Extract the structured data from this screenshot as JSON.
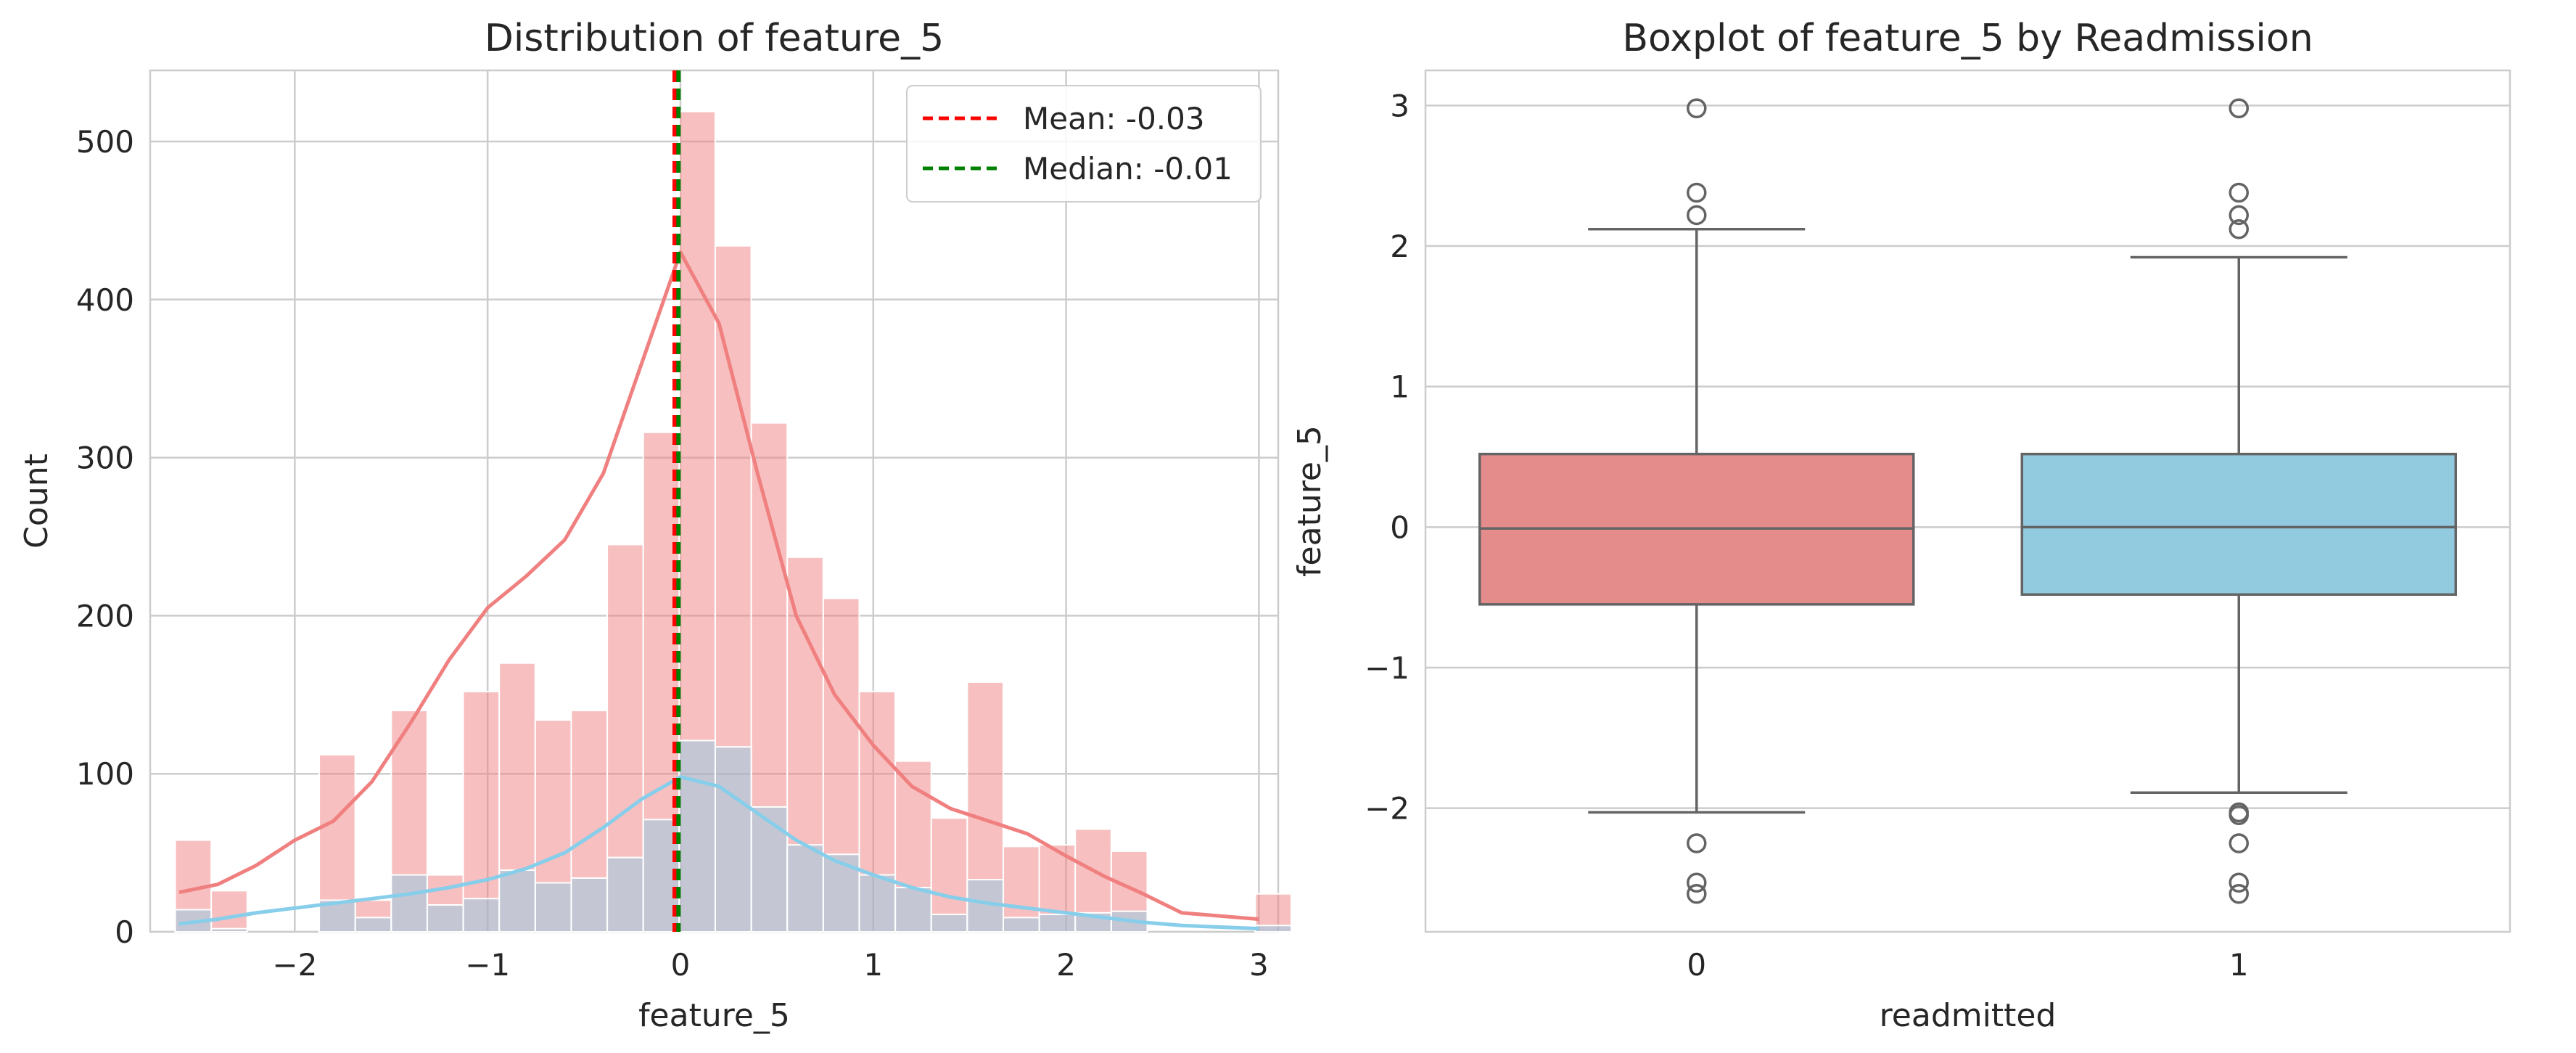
{
  "chart_data": [
    {
      "type": "histogram",
      "title": "Distribution of feature_5",
      "xlabel": "feature_5",
      "ylabel": "Count",
      "xlim": [
        -2.75,
        3.1
      ],
      "ylim": [
        0,
        545
      ],
      "xticks": [
        -2,
        -1,
        0,
        1,
        2,
        3
      ],
      "xtick_labels": [
        "−2",
        "−1",
        "0",
        "1",
        "2",
        "3"
      ],
      "yticks": [
        0,
        100,
        200,
        300,
        400,
        500
      ],
      "grid": true,
      "legend_position": "top-right",
      "bin_width": 0.1867,
      "bin_edges_start": -2.62,
      "series": [
        {
          "color": "#f08080",
          "counts": [
            58,
            26,
            0,
            0,
            112,
            20,
            140,
            36,
            152,
            170,
            134,
            140,
            245,
            316,
            519,
            434,
            322,
            237,
            211,
            152,
            108,
            72,
            158,
            54,
            55,
            65,
            51,
            0,
            0,
            0,
            24
          ],
          "kde_x": [
            -2.6,
            -2.4,
            -2.2,
            -2.0,
            -1.8,
            -1.6,
            -1.4,
            -1.2,
            -1.0,
            -0.8,
            -0.6,
            -0.4,
            -0.2,
            0.0,
            0.2,
            0.4,
            0.6,
            0.8,
            1.0,
            1.2,
            1.4,
            1.6,
            1.8,
            2.0,
            2.2,
            2.4,
            2.6,
            2.8,
            3.0
          ],
          "kde_y": [
            25,
            30,
            42,
            58,
            70,
            95,
            132,
            172,
            205,
            225,
            248,
            290,
            360,
            430,
            385,
            290,
            200,
            150,
            118,
            92,
            78,
            70,
            62,
            48,
            35,
            24,
            12,
            10,
            8
          ]
        },
        {
          "color": "#87ceeb",
          "counts": [
            14,
            2,
            0,
            0,
            20,
            9,
            36,
            17,
            21,
            39,
            31,
            34,
            47,
            71,
            121,
            117,
            79,
            55,
            49,
            36,
            28,
            11,
            33,
            9,
            11,
            12,
            13,
            0,
            0,
            0,
            4
          ],
          "kde_x": [
            -2.6,
            -2.4,
            -2.2,
            -2.0,
            -1.8,
            -1.6,
            -1.4,
            -1.2,
            -1.0,
            -0.8,
            -0.6,
            -0.4,
            -0.2,
            0.0,
            0.2,
            0.4,
            0.6,
            0.8,
            1.0,
            1.2,
            1.4,
            1.6,
            1.8,
            2.0,
            2.2,
            2.4,
            2.6,
            2.8,
            3.0
          ],
          "kde_y": [
            5,
            8,
            12,
            15,
            18,
            21,
            24,
            28,
            33,
            40,
            50,
            66,
            84,
            98,
            92,
            75,
            58,
            45,
            36,
            28,
            22,
            18,
            15,
            12,
            9,
            6,
            4,
            3,
            2
          ]
        }
      ],
      "lines": [
        {
          "name": "Mean: -0.03",
          "x": -0.03,
          "color": "#ff0000",
          "style": "dashed"
        },
        {
          "name": "Median: -0.01",
          "x": -0.01,
          "color": "#008000",
          "style": "dashed"
        }
      ]
    },
    {
      "type": "box",
      "title": "Boxplot of feature_5 by Readmission",
      "xlabel": "readmitted",
      "ylabel": "feature_5",
      "categories": [
        "0",
        "1"
      ],
      "ylim": [
        -2.88,
        3.25
      ],
      "yticks": [
        -2,
        -1,
        0,
        1,
        2,
        3
      ],
      "ytick_labels": [
        "−2",
        "−1",
        "0",
        "1",
        "2",
        "3"
      ],
      "grid": true,
      "boxes": [
        {
          "category": "0",
          "color": "#e48b8b",
          "whisker_low": -2.03,
          "q1": -0.55,
          "median": -0.01,
          "q3": 0.52,
          "whisker_high": 2.12,
          "outliers": [
            2.98,
            2.38,
            2.22,
            -2.25,
            -2.53,
            -2.61
          ]
        },
        {
          "category": "1",
          "color": "#92cae0",
          "whisker_low": -1.89,
          "q1": -0.48,
          "median": 0.0,
          "q3": 0.52,
          "whisker_high": 1.92,
          "outliers": [
            2.98,
            2.38,
            2.22,
            2.12,
            -2.03,
            -2.05,
            -2.25,
            -2.53,
            -2.61
          ]
        }
      ]
    }
  ]
}
